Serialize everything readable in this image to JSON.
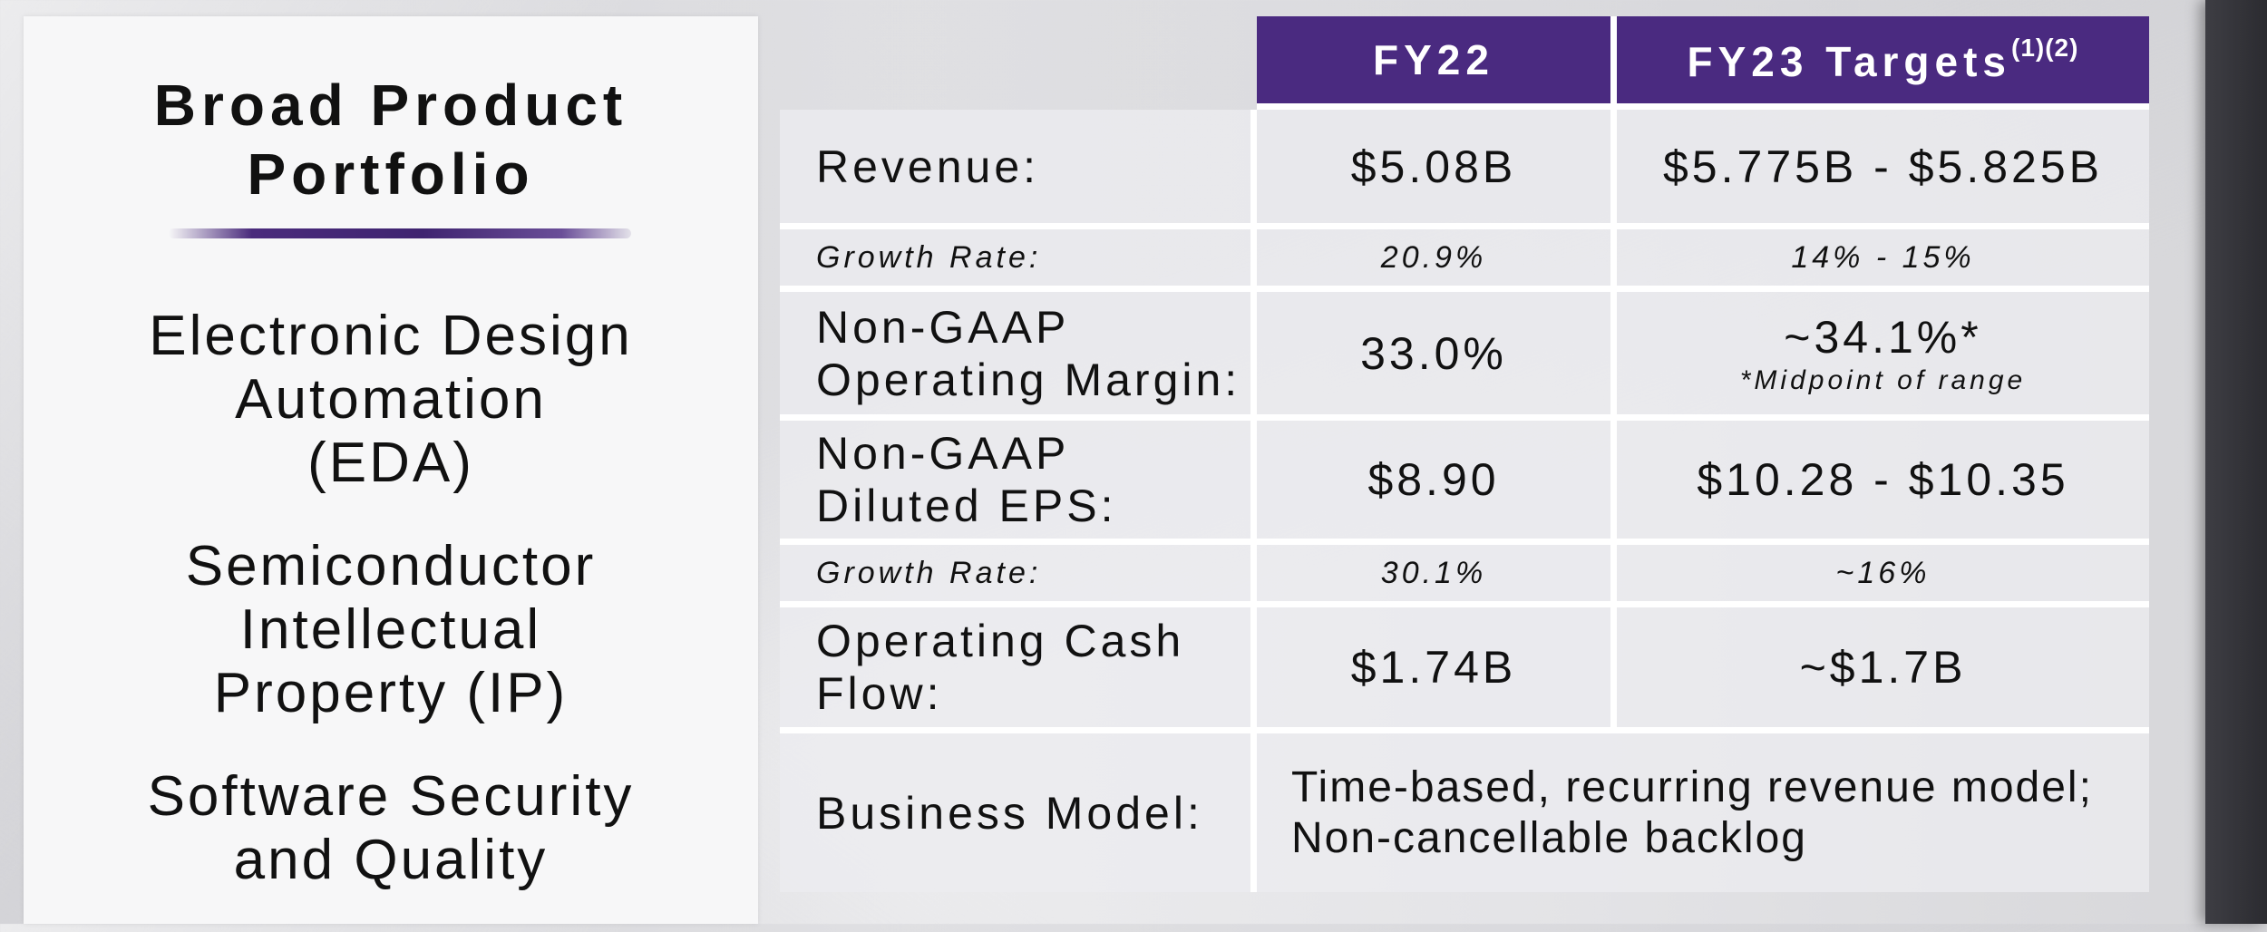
{
  "left_panel": {
    "title": "Broad Product\nPortfolio",
    "items": [
      "Electronic Design\nAutomation\n(EDA)",
      "Semiconductor\nIntellectual\nProperty (IP)",
      "Software Security\nand Quality"
    ]
  },
  "table": {
    "headers": {
      "fy22": "FY22",
      "fy23": "FY23 Targets",
      "fy23_footnote_marks": "(1)(2)"
    },
    "rows": {
      "revenue": {
        "label": "Revenue:",
        "fy22": "$5.08B",
        "fy23": "$5.775B - $5.825B"
      },
      "revenue_growth": {
        "label": "Growth Rate:",
        "fy22": "20.9%",
        "fy23": "14% - 15%"
      },
      "operating_margin": {
        "label": "Non-GAAP\nOperating Margin:",
        "fy22": "33.0%",
        "fy23": "~34.1%*",
        "fy23_note": "*Midpoint of range"
      },
      "eps": {
        "label": "Non-GAAP\nDiluted EPS:",
        "fy22": "$8.90",
        "fy23": "$10.28 - $10.35"
      },
      "eps_growth": {
        "label": "Growth Rate:",
        "fy22": "30.1%",
        "fy23": "~16%"
      },
      "operating_cash_flow": {
        "label": "Operating Cash\nFlow:",
        "fy22": "$1.74B",
        "fy23": "~$1.7B"
      },
      "business_model": {
        "label": "Business Model:",
        "value": "Time-based, recurring revenue model;\nNon-cancellable backlog"
      }
    }
  },
  "colors": {
    "header_purple": "#4a2a80",
    "header_text": "#ffffff"
  }
}
